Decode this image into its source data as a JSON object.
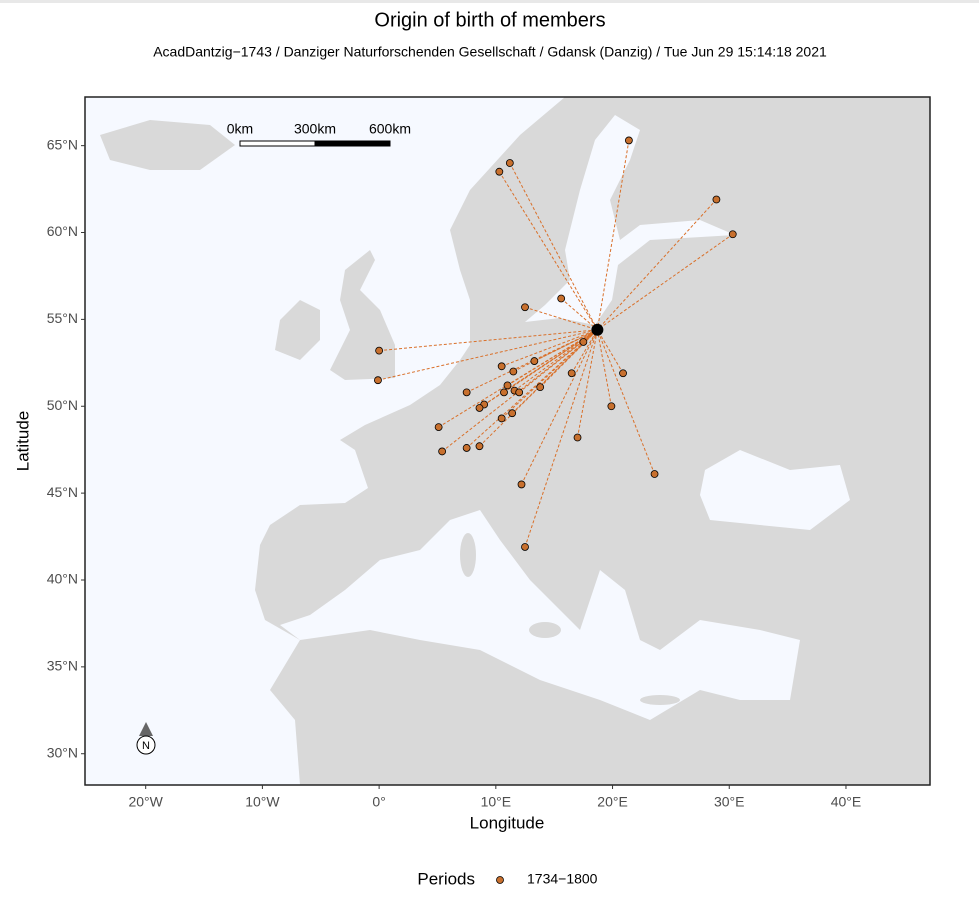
{
  "chart_data": {
    "type": "scatter",
    "title": "Origin of birth of members",
    "subtitle": "AcadDantzig−1743  /  Danziger Naturforschenden Gesellschaft  /  Gdansk (Danzig)  /  Tue Jun 29 15:14:18 2021",
    "xlabel": "Longitude",
    "ylabel": "Latitude",
    "xlim": [
      -25.2,
      47.2
    ],
    "ylim": [
      28.2,
      67.8
    ],
    "xticks": [
      {
        "value": -20,
        "label": "20°W"
      },
      {
        "value": -10,
        "label": "10°W"
      },
      {
        "value": 0,
        "label": "0°"
      },
      {
        "value": 10,
        "label": "10°E"
      },
      {
        "value": 20,
        "label": "20°E"
      },
      {
        "value": 30,
        "label": "30°E"
      },
      {
        "value": 40,
        "label": "40°E"
      }
    ],
    "yticks": [
      {
        "value": 30,
        "label": "30°N"
      },
      {
        "value": 35,
        "label": "35°N"
      },
      {
        "value": 40,
        "label": "40°N"
      },
      {
        "value": 45,
        "label": "45°N"
      },
      {
        "value": 50,
        "label": "50°N"
      },
      {
        "value": 55,
        "label": "55°N"
      },
      {
        "value": 60,
        "label": "60°N"
      },
      {
        "value": 65,
        "label": "65°N"
      }
    ],
    "origin": {
      "x": 18.7,
      "y": 54.4,
      "color": "#000000"
    },
    "series": [
      {
        "name": "1734−1800",
        "color": "#c8702e",
        "x": [
          21.4,
          11.2,
          10.3,
          28.9,
          30.3,
          15.6,
          12.5,
          0.0,
          -0.1,
          13.3,
          10.5,
          11.5,
          17.5,
          16.5,
          20.9,
          7.5,
          11.0,
          11.6,
          12.0,
          10.7,
          13.8,
          9.0,
          8.6,
          11.4,
          10.5,
          19.9,
          5.1,
          17.0,
          7.5,
          8.6,
          5.4,
          23.6,
          12.2,
          12.5
        ],
        "y": [
          65.3,
          64.0,
          63.5,
          61.9,
          59.9,
          56.2,
          55.7,
          53.2,
          51.5,
          52.6,
          52.3,
          52.0,
          53.7,
          51.9,
          51.9,
          50.8,
          51.2,
          50.9,
          50.8,
          50.8,
          51.1,
          50.1,
          49.9,
          49.6,
          49.3,
          50.0,
          48.8,
          48.2,
          47.6,
          47.7,
          47.4,
          46.1,
          45.5,
          41.9
        ]
      }
    ],
    "line_color": "#d9702a",
    "legend_title": "Periods",
    "scale_bar": [
      "0km",
      "300km",
      "600km"
    ],
    "north_label": "N"
  }
}
